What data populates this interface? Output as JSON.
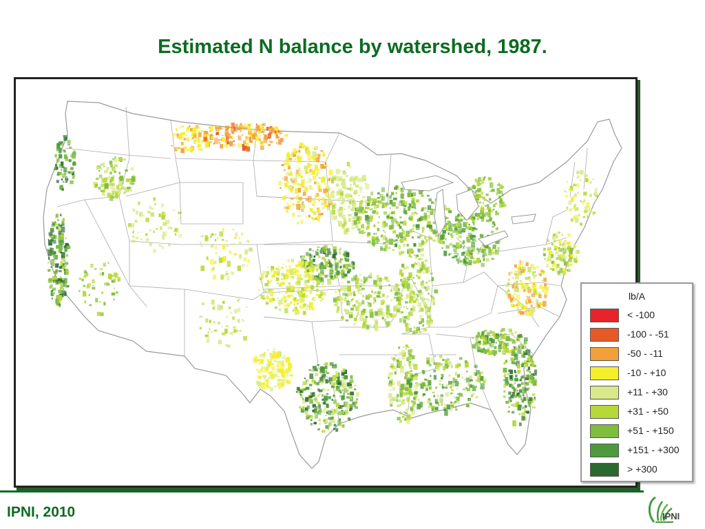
{
  "title": "Estimated N balance by watershed, 1987.",
  "source": "IPNI, 2010",
  "logo": {
    "text": "IPNI",
    "color": "#3f9a3a"
  },
  "legend": {
    "title": "lb/A",
    "items": [
      {
        "label": "< -100",
        "color": "#e8232a"
      },
      {
        "label": "-100 - -51",
        "color": "#e85a25"
      },
      {
        "label": "-50 - -11",
        "color": "#f2a03a"
      },
      {
        "label": "-10 - +10",
        "color": "#f5ef2a"
      },
      {
        "label": "+11 - +30",
        "color": "#d9e98a"
      },
      {
        "label": "+31 - +50",
        "color": "#b6d838"
      },
      {
        "label": "+51 - +150",
        "color": "#7fbd3c"
      },
      {
        "label": "+151 - +300",
        "color": "#4d9a3e"
      },
      {
        "label": "> +300",
        "color": "#2a6a2e"
      }
    ]
  },
  "colors": {
    "title": "#0d6b22",
    "border": "#222222"
  }
}
